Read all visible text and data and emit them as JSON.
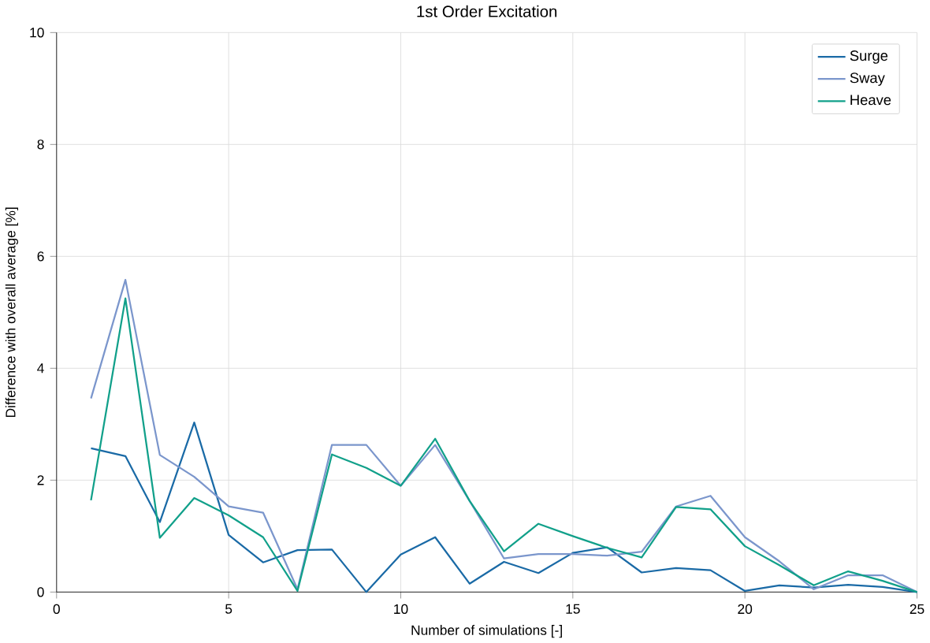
{
  "chart_data": {
    "type": "line",
    "title": "1st Order Excitation",
    "xlabel": "Number of simulations [-]",
    "ylabel": "Difference with overall average [%]",
    "x": [
      1,
      2,
      3,
      4,
      5,
      6,
      7,
      8,
      9,
      10,
      11,
      12,
      13,
      14,
      15,
      16,
      17,
      18,
      19,
      20,
      21,
      22,
      23,
      24,
      25
    ],
    "series": [
      {
        "name": "Surge",
        "color": "#1a6aa6",
        "values": [
          2.57,
          2.43,
          1.25,
          3.03,
          1.02,
          0.53,
          0.75,
          0.76,
          0.0,
          0.67,
          0.98,
          0.15,
          0.54,
          0.34,
          0.7,
          0.8,
          0.35,
          0.43,
          0.39,
          0.02,
          0.12,
          0.08,
          0.13,
          0.09,
          0.0
        ]
      },
      {
        "name": "Sway",
        "color": "#7b96cc",
        "values": [
          3.46,
          5.58,
          2.45,
          2.06,
          1.53,
          1.42,
          0.05,
          2.63,
          2.63,
          1.9,
          2.63,
          1.63,
          0.6,
          0.68,
          0.68,
          0.65,
          0.72,
          1.53,
          1.72,
          0.98,
          0.55,
          0.05,
          0.3,
          0.3,
          0.0
        ]
      },
      {
        "name": "Heave",
        "color": "#11a08a",
        "values": [
          1.64,
          5.25,
          0.97,
          1.68,
          1.37,
          0.98,
          0.02,
          2.46,
          2.22,
          1.9,
          2.74,
          1.63,
          0.73,
          1.22,
          1.0,
          0.79,
          0.62,
          1.52,
          1.48,
          0.82,
          0.48,
          0.12,
          0.37,
          0.2,
          0.0
        ]
      }
    ],
    "xlim": [
      0,
      25
    ],
    "ylim": [
      0,
      10
    ],
    "xticks": [
      0,
      5,
      10,
      15,
      20,
      25
    ],
    "yticks": [
      0,
      2,
      4,
      6,
      8,
      10
    ],
    "grid": true,
    "legend": "top right",
    "marker": "none",
    "line_style": "solid"
  }
}
